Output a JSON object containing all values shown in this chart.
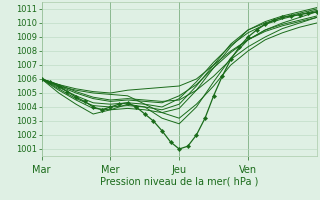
{
  "xlabel": "Pression niveau de la mer( hPa )",
  "xlim": [
    0,
    96
  ],
  "ylim": [
    1000.5,
    1011.5
  ],
  "yticks": [
    1001,
    1002,
    1003,
    1004,
    1005,
    1006,
    1007,
    1008,
    1009,
    1010,
    1011
  ],
  "xtick_positions": [
    0,
    24,
    48,
    72
  ],
  "xtick_labels": [
    "Mar",
    "Mer",
    "Jeu",
    "Ven"
  ],
  "bg_color": "#dff0e4",
  "grid_color": "#b8d8c0",
  "line_color": "#1a6b1a",
  "lines": [
    {
      "points": [
        [
          0,
          1006.0
        ],
        [
          6,
          1005.6
        ],
        [
          12,
          1005.1
        ],
        [
          18,
          1004.7
        ],
        [
          24,
          1004.5
        ],
        [
          30,
          1004.6
        ],
        [
          36,
          1004.5
        ],
        [
          42,
          1004.4
        ],
        [
          48,
          1004.5
        ],
        [
          54,
          1005.2
        ],
        [
          60,
          1006.2
        ],
        [
          66,
          1007.4
        ],
        [
          72,
          1008.3
        ],
        [
          78,
          1009.0
        ],
        [
          84,
          1009.6
        ],
        [
          90,
          1010.0
        ],
        [
          96,
          1010.4
        ]
      ],
      "marker": false
    },
    {
      "points": [
        [
          0,
          1006.0
        ],
        [
          6,
          1005.5
        ],
        [
          12,
          1005.0
        ],
        [
          18,
          1004.6
        ],
        [
          24,
          1004.4
        ],
        [
          30,
          1004.5
        ],
        [
          36,
          1004.4
        ],
        [
          42,
          1004.3
        ],
        [
          48,
          1004.8
        ],
        [
          54,
          1005.6
        ],
        [
          60,
          1006.8
        ],
        [
          66,
          1007.9
        ],
        [
          72,
          1008.8
        ],
        [
          78,
          1009.5
        ],
        [
          84,
          1010.0
        ],
        [
          90,
          1010.4
        ],
        [
          96,
          1010.8
        ]
      ],
      "marker": false
    },
    {
      "points": [
        [
          0,
          1006.0
        ],
        [
          6,
          1005.4
        ],
        [
          12,
          1004.8
        ],
        [
          18,
          1004.3
        ],
        [
          24,
          1004.2
        ],
        [
          30,
          1004.3
        ],
        [
          36,
          1004.2
        ],
        [
          42,
          1004.0
        ],
        [
          48,
          1004.6
        ],
        [
          54,
          1005.8
        ],
        [
          60,
          1007.2
        ],
        [
          66,
          1008.4
        ],
        [
          72,
          1009.3
        ],
        [
          78,
          1009.9
        ],
        [
          84,
          1010.3
        ],
        [
          90,
          1010.6
        ],
        [
          96,
          1010.9
        ]
      ],
      "marker": false
    },
    {
      "points": [
        [
          0,
          1006.0
        ],
        [
          6,
          1005.3
        ],
        [
          12,
          1004.6
        ],
        [
          18,
          1004.1
        ],
        [
          24,
          1004.0
        ],
        [
          30,
          1004.1
        ],
        [
          36,
          1004.0
        ],
        [
          42,
          1003.8
        ],
        [
          48,
          1004.2
        ],
        [
          54,
          1005.5
        ],
        [
          60,
          1007.0
        ],
        [
          66,
          1008.5
        ],
        [
          72,
          1009.5
        ],
        [
          78,
          1010.0
        ],
        [
          84,
          1010.4
        ],
        [
          90,
          1010.7
        ],
        [
          96,
          1011.0
        ]
      ],
      "marker": false
    },
    {
      "points": [
        [
          0,
          1006.0
        ],
        [
          6,
          1005.2
        ],
        [
          12,
          1004.5
        ],
        [
          18,
          1003.9
        ],
        [
          24,
          1003.8
        ],
        [
          30,
          1003.9
        ],
        [
          36,
          1003.8
        ],
        [
          42,
          1003.6
        ],
        [
          48,
          1003.9
        ],
        [
          54,
          1005.2
        ],
        [
          60,
          1006.8
        ],
        [
          66,
          1008.3
        ],
        [
          72,
          1009.5
        ],
        [
          78,
          1010.1
        ],
        [
          84,
          1010.5
        ],
        [
          90,
          1010.8
        ],
        [
          96,
          1011.1
        ]
      ],
      "marker": false
    },
    {
      "points": [
        [
          0,
          1006.0
        ],
        [
          6,
          1005.6
        ],
        [
          12,
          1005.3
        ],
        [
          18,
          1005.1
        ],
        [
          24,
          1005.0
        ],
        [
          30,
          1005.2
        ],
        [
          36,
          1005.3
        ],
        [
          42,
          1005.4
        ],
        [
          48,
          1005.5
        ],
        [
          54,
          1006.0
        ],
        [
          60,
          1007.0
        ],
        [
          66,
          1008.0
        ],
        [
          72,
          1008.8
        ],
        [
          78,
          1009.4
        ],
        [
          84,
          1009.8
        ],
        [
          90,
          1010.1
        ],
        [
          96,
          1010.4
        ]
      ],
      "marker": false
    },
    {
      "points": [
        [
          0,
          1006.0
        ],
        [
          6,
          1005.5
        ],
        [
          12,
          1005.2
        ],
        [
          18,
          1005.0
        ],
        [
          24,
          1004.9
        ],
        [
          30,
          1004.8
        ],
        [
          36,
          1004.2
        ],
        [
          42,
          1003.6
        ],
        [
          48,
          1003.2
        ],
        [
          54,
          1004.2
        ],
        [
          60,
          1005.5
        ],
        [
          66,
          1007.0
        ],
        [
          72,
          1008.0
        ],
        [
          78,
          1008.8
        ],
        [
          84,
          1009.3
        ],
        [
          90,
          1009.7
        ],
        [
          96,
          1010.0
        ]
      ],
      "marker": false
    },
    {
      "points": [
        [
          0,
          1006.0
        ],
        [
          6,
          1005.0
        ],
        [
          12,
          1004.2
        ],
        [
          18,
          1003.5
        ],
        [
          24,
          1003.8
        ],
        [
          30,
          1004.2
        ],
        [
          36,
          1004.0
        ],
        [
          42,
          1003.2
        ],
        [
          48,
          1002.8
        ],
        [
          54,
          1004.0
        ],
        [
          60,
          1005.8
        ],
        [
          66,
          1007.5
        ],
        [
          72,
          1008.8
        ],
        [
          78,
          1009.5
        ],
        [
          84,
          1009.9
        ],
        [
          90,
          1010.2
        ],
        [
          96,
          1010.5
        ]
      ],
      "marker": false
    },
    {
      "points": [
        [
          0,
          1006.0
        ],
        [
          3,
          1005.8
        ],
        [
          6,
          1005.5
        ],
        [
          9,
          1005.1
        ],
        [
          12,
          1004.7
        ],
        [
          15,
          1004.4
        ],
        [
          18,
          1004.0
        ],
        [
          21,
          1003.8
        ],
        [
          24,
          1004.0
        ],
        [
          27,
          1004.2
        ],
        [
          30,
          1004.3
        ],
        [
          33,
          1004.0
        ],
        [
          36,
          1003.5
        ],
        [
          39,
          1003.0
        ],
        [
          42,
          1002.3
        ],
        [
          45,
          1001.5
        ],
        [
          48,
          1001.0
        ],
        [
          51,
          1001.2
        ],
        [
          54,
          1002.0
        ],
        [
          57,
          1003.2
        ],
        [
          60,
          1004.8
        ],
        [
          63,
          1006.2
        ],
        [
          66,
          1007.4
        ],
        [
          69,
          1008.3
        ],
        [
          72,
          1009.0
        ],
        [
          75,
          1009.5
        ],
        [
          78,
          1009.9
        ],
        [
          81,
          1010.2
        ],
        [
          84,
          1010.4
        ],
        [
          87,
          1010.5
        ],
        [
          90,
          1010.6
        ],
        [
          93,
          1010.7
        ],
        [
          96,
          1010.8
        ]
      ],
      "marker": true
    }
  ]
}
